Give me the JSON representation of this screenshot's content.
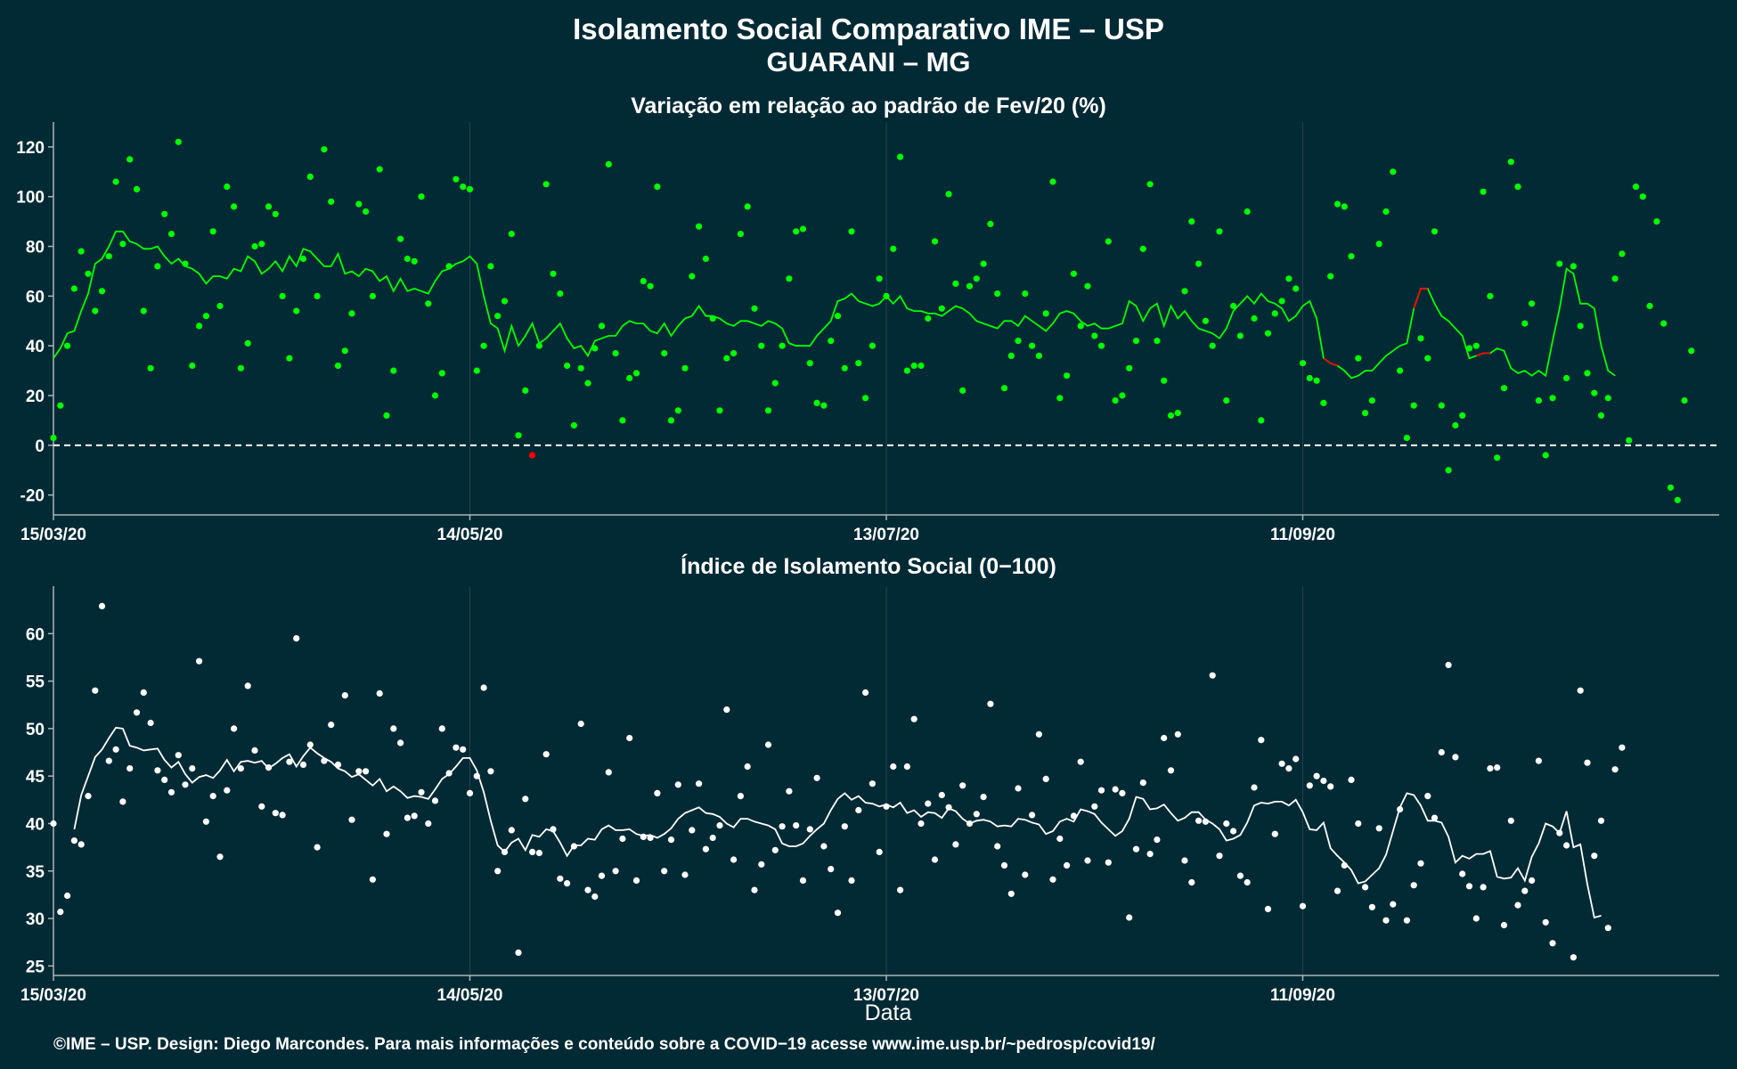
{
  "title": "Isolamento Social Comparativo IME – USP",
  "subtitle": "GUARANI – MG",
  "xlabel": "Data",
  "footer": "©IME – USP. Design: Diego Marcondes. Para mais informações e conteúdo sobre a COVID−19 acesse www.ime.usp.br/~pedrosp/covid19/",
  "colors": {
    "background": "#022a35",
    "green": "#00ff00",
    "red": "#ff0000",
    "white": "#ffffff",
    "axis": "#aab4b8"
  },
  "chart_data": [
    {
      "type": "scatter",
      "title": "Variação em relação ao padrão de Fev/20 (%)",
      "x_start": "15/03/20",
      "x_range_days": [
        0,
        240
      ],
      "x_ticks": [
        {
          "day": 0,
          "label": "15/03/20"
        },
        {
          "day": 60,
          "label": "14/05/20"
        },
        {
          "day": 120,
          "label": "13/07/20"
        },
        {
          "day": 180,
          "label": "11/09/20"
        }
      ],
      "ylim": [
        -28,
        130
      ],
      "y_ticks": [
        "-20",
        "0",
        "20",
        "40",
        "60",
        "80",
        "100",
        "120"
      ],
      "reference_line": 0,
      "points": [
        3,
        16,
        40,
        63,
        78,
        69,
        54,
        62,
        76,
        106,
        81,
        115,
        103,
        54,
        31,
        72,
        93,
        85,
        122,
        73,
        32,
        48,
        52,
        86,
        56,
        104,
        96,
        31,
        41,
        80,
        81,
        96,
        93,
        60,
        35,
        54,
        75,
        108,
        60,
        119,
        98,
        32,
        38,
        53,
        97,
        94,
        60,
        111,
        12,
        30,
        83,
        75,
        74,
        100,
        57,
        20,
        29,
        72,
        107,
        104,
        103,
        30,
        40,
        72,
        52,
        58,
        85,
        4,
        22,
        -4,
        40,
        105,
        69,
        61,
        32,
        8,
        31,
        25,
        39,
        48,
        113,
        37,
        10,
        27,
        29,
        66,
        64,
        104,
        37,
        10,
        14,
        31,
        68,
        88,
        75,
        51,
        14,
        35,
        37,
        85,
        96,
        55,
        40,
        14,
        25,
        40,
        67,
        86,
        87,
        33,
        17,
        16,
        42,
        52,
        31,
        86,
        33,
        19,
        40,
        67,
        60,
        79,
        116,
        30,
        32,
        32,
        51,
        82,
        55,
        101,
        65,
        22,
        64,
        67,
        73,
        89,
        61,
        23,
        36,
        42,
        61,
        40,
        36,
        53,
        106,
        19,
        28,
        69,
        48,
        64,
        44,
        40,
        82,
        18,
        20,
        31,
        42,
        79,
        105,
        42,
        26,
        12,
        13,
        62,
        90,
        73,
        50,
        40,
        86,
        18,
        56,
        44,
        94,
        51,
        10,
        45,
        53,
        58,
        67,
        63,
        33,
        27,
        26,
        17,
        68,
        97,
        96,
        76,
        35,
        13,
        18,
        81,
        94,
        110,
        30,
        3,
        16,
        43,
        35,
        86,
        16,
        -10,
        8,
        12,
        39,
        40,
        102,
        60,
        -5,
        23,
        114,
        104,
        49,
        57,
        18,
        -4,
        19,
        73,
        27,
        72,
        48,
        29,
        21,
        12,
        19,
        67,
        77,
        2,
        104,
        100,
        56,
        90,
        49,
        -17,
        -22,
        18,
        38
      ],
      "moving_average": [
        35,
        39,
        45,
        46,
        54,
        61,
        73,
        75,
        80,
        86,
        86,
        82,
        81,
        79,
        79,
        80,
        76,
        73,
        75,
        72,
        71,
        69,
        65,
        68,
        68,
        67,
        71,
        70,
        76,
        74,
        69,
        71,
        74,
        70,
        76,
        72,
        79,
        78,
        75,
        72,
        72,
        77,
        69,
        70,
        68,
        71,
        70,
        66,
        68,
        62,
        67,
        62,
        63,
        62,
        61,
        66,
        70,
        71,
        73,
        74,
        76,
        73,
        60,
        49,
        47,
        38,
        48,
        40,
        44,
        49,
        41,
        43,
        46,
        49,
        43,
        39,
        40,
        36,
        42,
        43,
        44,
        44,
        48,
        50,
        49,
        49,
        46,
        45,
        49,
        44,
        48,
        51,
        52,
        56,
        52,
        52,
        51,
        49,
        48,
        50,
        50,
        49,
        48,
        50,
        49,
        47,
        41,
        40,
        40,
        40,
        44,
        47,
        50,
        58,
        59,
        61,
        58,
        57,
        56,
        57,
        60,
        57,
        60,
        55,
        54,
        54,
        53,
        53,
        52,
        54,
        56,
        55,
        53,
        50,
        49,
        48,
        47,
        50,
        50,
        48,
        52,
        50,
        48,
        46,
        49,
        53,
        54,
        53,
        50,
        48,
        49,
        47,
        47,
        48,
        49,
        58,
        56,
        50,
        55,
        57,
        48,
        56,
        51,
        54,
        50,
        47,
        46,
        45,
        43,
        47,
        54,
        57,
        60,
        57,
        61,
        58,
        57,
        55,
        50,
        52,
        56,
        58,
        51,
        35,
        33,
        32,
        30,
        27,
        28,
        30,
        30,
        33,
        36,
        38,
        40,
        41,
        55,
        63,
        63,
        57,
        52,
        50,
        47,
        44,
        35,
        36,
        37,
        37,
        39,
        38,
        31,
        29,
        30,
        28,
        30,
        28,
        42,
        55,
        71,
        69,
        57,
        57,
        55,
        40,
        30,
        28
      ],
      "red_points": [
        69,
        207,
        213,
        219,
        225,
        231,
        236,
        237
      ]
    },
    {
      "type": "scatter",
      "title": "Índice de Isolamento Social (0−100)",
      "x_start": "15/03/20",
      "x_range_days": [
        0,
        240
      ],
      "x_ticks": [
        {
          "day": 0,
          "label": "15/03/20"
        },
        {
          "day": 60,
          "label": "14/05/20"
        },
        {
          "day": 120,
          "label": "13/07/20"
        },
        {
          "day": 180,
          "label": "11/09/20"
        }
      ],
      "ylim": [
        24,
        65
      ],
      "y_ticks": [
        "25",
        "30",
        "35",
        "40",
        "45",
        "50",
        "55",
        "60"
      ],
      "points": [
        40,
        30.7,
        32.4,
        38.2,
        37.8,
        42.9,
        54.0,
        62.9,
        46.6,
        47.8,
        42.3,
        45.8,
        51.7,
        53.8,
        50.6,
        45.6,
        44.6,
        43.3,
        47.2,
        44.1,
        45.8,
        57.1,
        40.2,
        42.9,
        36.5,
        43.5,
        50.0,
        45.8,
        54.5,
        47.7,
        41.8,
        45.9,
        41.1,
        40.9,
        46.5,
        59.5,
        46.2,
        48.3,
        37.5,
        46.6,
        50.4,
        46.2,
        53.5,
        40.4,
        45.5,
        45.5,
        34.1,
        53.7,
        38.9,
        50.0,
        48.5,
        40.6,
        40.8,
        43.3,
        40.0,
        42.4,
        50.0,
        45.3,
        48.0,
        47.8,
        43.2,
        45.0,
        54.3,
        45.5,
        35.0,
        37.0,
        39.3,
        26.4,
        42.6,
        37.0,
        36.9,
        47.3,
        39.4,
        34.2,
        33.7,
        37.6,
        50.5,
        33.0,
        32.3,
        34.5,
        45.4,
        35.0,
        38.4,
        49.0,
        34.0,
        38.6,
        38.5,
        43.2,
        35.0,
        38.3,
        44.1,
        34.6,
        39.3,
        44.2,
        37.3,
        38.5,
        39.8,
        52.0,
        36.2,
        42.9,
        46.0,
        33.0,
        35.7,
        48.3,
        37.2,
        39.7,
        43.4,
        39.8,
        34.0,
        39.4,
        44.8,
        37.6,
        35.2,
        30.6,
        39.7,
        34.0,
        41.4,
        53.8,
        44.2,
        37.0,
        41.8,
        46.0,
        33.0,
        46.0,
        51.0,
        40.0,
        42.1,
        36.2,
        43.0,
        41.7,
        37.8,
        44.0,
        40.0,
        41.0,
        42.8,
        52.6,
        37.6,
        35.6,
        32.6,
        43.7,
        34.6,
        40.9,
        49.4,
        44.7,
        34.1,
        38.4,
        35.6,
        40.8,
        46.5,
        36.1,
        41.8,
        43.5,
        35.9,
        43.6,
        43.2,
        30.1,
        37.3,
        44.3,
        36.8,
        38.3,
        49.0,
        45.6,
        49.4,
        36.1,
        33.8,
        40.3,
        40.2,
        55.6,
        36.6,
        40.0,
        39.2,
        34.5,
        33.8,
        43.8,
        48.8,
        31.0,
        38.9,
        46.3,
        45.8,
        46.8,
        31.3,
        44.0,
        45.0,
        44.5,
        43.9,
        32.9,
        35.6,
        44.6,
        40.0,
        33.3,
        31.2,
        39.5,
        29.8,
        31.5,
        41.5,
        29.8,
        33.5,
        35.8,
        42.9,
        40.6,
        47.5,
        56.7,
        47.0,
        34.7,
        33.4,
        30.0,
        33.3,
        45.8,
        45.9,
        29.3,
        40.3,
        31.4,
        32.9,
        34.0,
        46.6,
        29.6,
        27.4,
        39.0,
        37.7,
        25.9,
        54.0,
        46.4,
        36.6,
        40.3,
        29.0,
        45.7,
        48.0
      ],
      "moving_average": [
        null,
        null,
        null,
        39.4,
        43,
        45,
        47,
        47.8,
        49,
        50.1,
        50,
        48.2,
        48,
        47.7,
        47.8,
        47.9,
        46.7,
        45.9,
        46.5,
        45.2,
        44.3,
        44.9,
        45.1,
        44.8,
        45.6,
        46.7,
        45.5,
        46.5,
        46.6,
        46.4,
        46.6,
        45.8,
        46.3,
        46.9,
        47.3,
        46,
        47.1,
        48.0,
        47.4,
        46.9,
        46.5,
        45.8,
        45.5,
        44.9,
        45.2,
        44.6,
        44.0,
        44.7,
        43.4,
        43.9,
        43.4,
        42.7,
        42.9,
        42.8,
        42.6,
        43.6,
        44.7,
        45.2,
        46.0,
        46.9,
        46.9,
        45.6,
        43.3,
        40.3,
        37.7,
        37.0,
        38.0,
        38.4,
        37.2,
        38.8,
        38.6,
        39.4,
        39.2,
        38.0,
        36.6,
        37.7,
        37.7,
        38.4,
        38.3,
        39.4,
        39.8,
        39.3,
        39.3,
        39.4,
        38.9,
        38.7,
        38.8,
        38.5,
        38.9,
        39.5,
        40.5,
        41.1,
        41.4,
        41.7,
        41.1,
        41.0,
        40.7,
        40.0,
        39.6,
        40.5,
        40.5,
        40.2,
        40.0,
        39.8,
        39.4,
        37.9,
        37.6,
        37.6,
        37.9,
        38.7,
        39.4,
        40.0,
        41.4,
        42.6,
        43.2,
        42.5,
        42.9,
        42.2,
        42.1,
        41.8,
        42.0,
        41.7,
        42.2,
        41.1,
        41.4,
        40.7,
        41.2,
        41.1,
        40.6,
        41.6,
        41.3,
        40.5,
        40.0,
        40.3,
        40.4,
        40.2,
        39.7,
        39.8,
        39.7,
        40.5,
        40.4,
        40.1,
        39.9,
        38.9,
        39.2,
        40.2,
        40.5,
        40.2,
        41.5,
        41.3,
        41.0,
        40.1,
        39.4,
        38.7,
        39.2,
        40.5,
        42.8,
        42.6,
        41.5,
        41.6,
        42.0,
        41.1,
        40.3,
        40.6,
        41.2,
        41.2,
        40.4,
        40.0,
        39.4,
        38.2,
        38.4,
        38.8,
        40.1,
        41.9,
        42.2,
        42.1,
        42.3,
        42.3,
        41.9,
        42.5,
        41.2,
        39.4,
        39.3,
        40.1,
        37.4,
        36.6,
        35.9,
        35.1,
        33.7,
        33.9,
        34.6,
        35.3,
        36.7,
        39.2,
        41.7,
        43.2,
        43.0,
        41.9,
        40.3,
        40.3,
        40.1,
        38.6,
        35.9,
        36.6,
        36.3,
        36.8,
        36.8,
        37.1,
        34.4,
        34.2,
        34.3,
        35.3,
        34.0,
        36.5,
        37.9,
        40.0,
        39.7,
        39.0,
        41.3,
        37.5,
        37.8,
        33.6,
        30.1,
        30.3
      ]
    }
  ]
}
